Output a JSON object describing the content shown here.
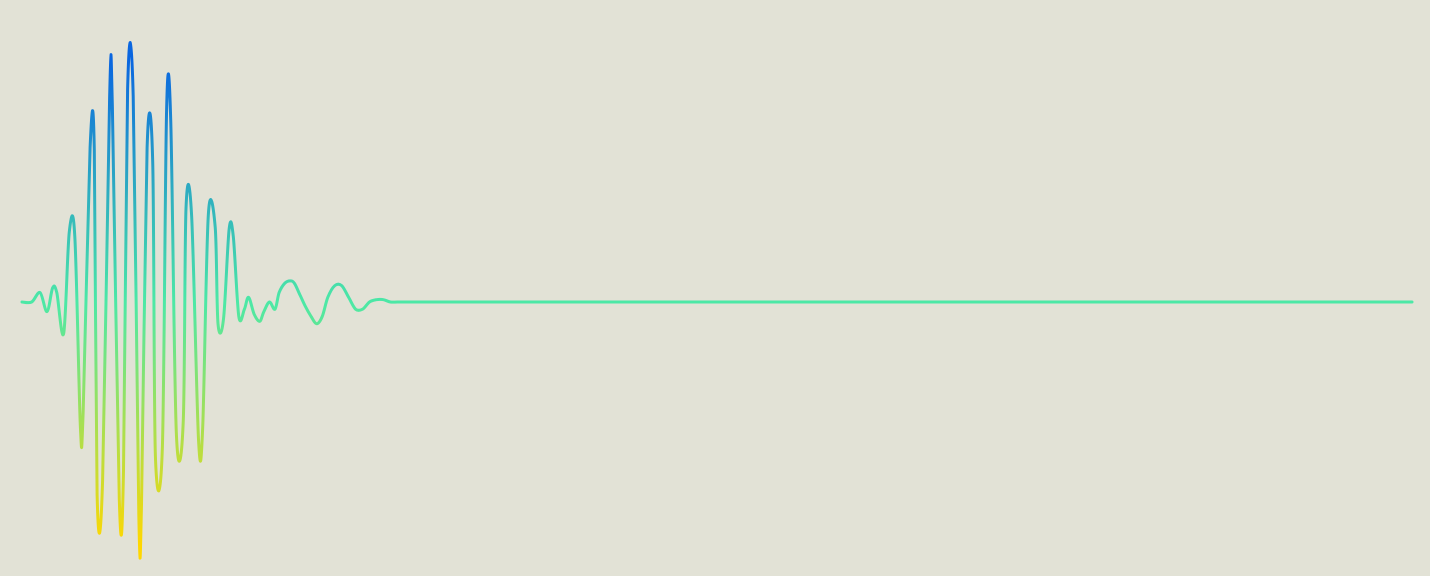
{
  "chart_data": {
    "type": "line",
    "title": "",
    "xlabel": "",
    "ylabel": "",
    "grid": false,
    "legend": false,
    "xlim": [
      0,
      1
    ],
    "ylim": [
      -1,
      1
    ],
    "colormap": {
      "low": "#ffd700",
      "mid": "#4ce8a6",
      "high": "#0a66e0"
    },
    "background": "#e2e2d6",
    "series": [
      {
        "x": [
          0.0,
          0.007,
          0.013,
          0.018,
          0.022,
          0.025,
          0.03,
          0.034,
          0.038,
          0.042,
          0.044,
          0.049,
          0.052,
          0.054,
          0.058,
          0.063,
          0.065,
          0.07,
          0.073,
          0.076,
          0.08,
          0.084,
          0.086,
          0.09,
          0.094,
          0.096,
          0.101,
          0.104,
          0.107,
          0.111,
          0.116,
          0.118,
          0.122,
          0.127,
          0.13,
          0.134,
          0.139,
          0.141,
          0.145,
          0.149,
          0.152,
          0.156,
          0.16,
          0.163,
          0.167,
          0.171,
          0.174,
          0.178,
          0.182,
          0.185,
          0.189,
          0.193,
          0.196,
          0.2,
          0.204,
          0.208,
          0.212,
          0.216,
          0.22,
          0.225,
          0.23,
          0.235,
          0.24,
          0.245,
          0.25,
          0.255,
          0.26,
          0.265,
          0.27,
          0.275,
          0.28,
          0.285,
          0.29,
          0.295,
          0.3,
          0.305,
          0.31,
          0.315,
          0.32,
          0.325,
          0.33,
          0.34,
          0.35,
          0.36,
          0.37,
          0.38,
          0.39,
          0.4,
          0.42,
          0.44,
          0.46,
          0.48,
          0.5,
          0.52,
          0.54,
          0.56,
          0.58,
          0.6,
          0.62,
          0.64,
          0.66,
          0.68,
          0.7,
          0.72,
          0.74,
          0.76,
          0.78,
          0.8,
          0.82,
          0.84,
          0.86,
          0.88,
          0.9,
          0.92,
          0.94,
          0.96,
          0.98,
          1.0
        ],
        "y": [
          0.0,
          0.0,
          0.04,
          -0.04,
          0.06,
          0.04,
          -0.13,
          0.3,
          0.28,
          -0.52,
          -0.45,
          0.66,
          0.65,
          -0.8,
          -0.74,
          0.87,
          0.83,
          -0.82,
          -0.7,
          0.91,
          0.88,
          -0.88,
          -0.84,
          0.66,
          0.6,
          -0.64,
          -0.6,
          0.82,
          0.78,
          -0.54,
          -0.5,
          0.4,
          0.37,
          -0.57,
          -0.52,
          0.37,
          0.32,
          -0.09,
          -0.07,
          0.31,
          0.28,
          -0.06,
          -0.03,
          0.02,
          -0.05,
          -0.08,
          -0.04,
          0.0,
          -0.03,
          0.04,
          0.08,
          0.09,
          0.08,
          0.03,
          -0.02,
          -0.06,
          -0.09,
          -0.06,
          0.02,
          0.07,
          0.07,
          0.02,
          -0.03,
          -0.03,
          0.0,
          0.01,
          0.01,
          0.0,
          0.0,
          0.0,
          0.0,
          0.0,
          0.0,
          0.0,
          0.0,
          0.0,
          0.0,
          0.0,
          0.0,
          0.0,
          0.0,
          0.0,
          0.0,
          0.0,
          0.0,
          0.0,
          0.0,
          0.0,
          0.0,
          0.0,
          0.0,
          0.0,
          0.0,
          0.0,
          0.0,
          0.0,
          0.0,
          0.0,
          0.0,
          0.0,
          0.0,
          0.0,
          0.0,
          0.0,
          0.0,
          0.0,
          0.0,
          0.0,
          0.0,
          0.0,
          0.0,
          0.0,
          0.0,
          0.0,
          0.0,
          0.0,
          0.0,
          0.0
        ]
      }
    ]
  }
}
